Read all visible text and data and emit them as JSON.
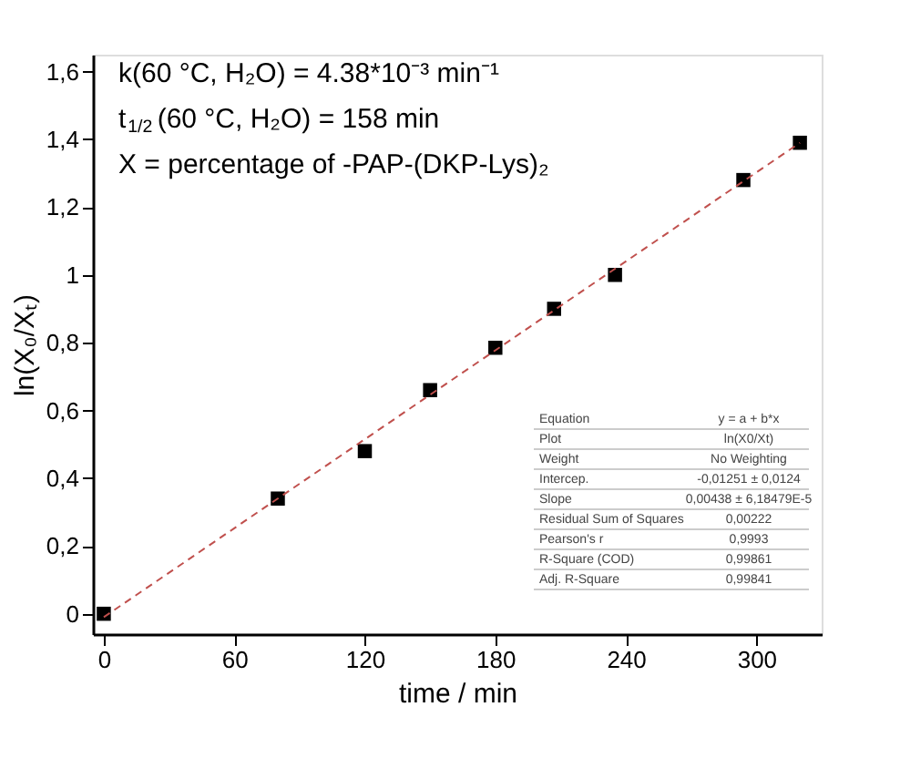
{
  "chart_data": {
    "type": "scatter",
    "xlabel": "time / min",
    "ylabel": "ln(X₀/Xₜ)",
    "x": [
      0,
      80,
      120,
      150,
      180,
      207,
      235,
      294,
      320
    ],
    "series": [
      {
        "color": "#000000",
        "marker": "square",
        "values": [
          0,
          0.34,
          0.48,
          0.66,
          0.785,
          0.9,
          1.0,
          1.28,
          1.39
        ]
      },
      {
        "type": "line",
        "color": "#c0504d",
        "line_style": "dashed",
        "marker": "none",
        "x": [
          0,
          320
        ],
        "values": [
          -0.01,
          1.39
        ]
      }
    ],
    "xlim": [
      -5,
      330
    ],
    "ylim": [
      -0.06,
      1.65
    ],
    "xticks": [
      0,
      60,
      120,
      180,
      240,
      300
    ],
    "yticks": [
      0,
      {
        "value": 0.2,
        "label": "0,2"
      },
      {
        "value": 0.4,
        "label": "0,4"
      },
      {
        "value": 0.6,
        "label": "0,6"
      },
      {
        "value": 0.8,
        "label": "0,8"
      },
      1,
      {
        "value": 1.2,
        "label": "1,2"
      },
      {
        "value": 1.4,
        "label": "1,4"
      },
      {
        "value": 1.6,
        "label": "1,6"
      }
    ],
    "grid": false,
    "annotations": [
      "k(60 °C, H₂O)   = 4.38*10⁻³ min⁻¹",
      "t$_{1/2}$(60 °C, H₂O) = 158 min",
      "X = percentage of -PAP-(DKP-Lys)₂",
      "Equation",
      "y = a + b*x",
      "Plot",
      "ln(X0/Xt)",
      "Weight",
      "No Weighting",
      "Intercep.",
      "-0,01251 ± 0,0124",
      "Slope",
      "0,00438 ± 6,18479E-5",
      "Residual Sum of Squares",
      "0,00222",
      "Pearson's r",
      "0,9993",
      "R-Square (COD)",
      "0,99861",
      "Adj. R-Square",
      "0,99841"
    ]
  }
}
